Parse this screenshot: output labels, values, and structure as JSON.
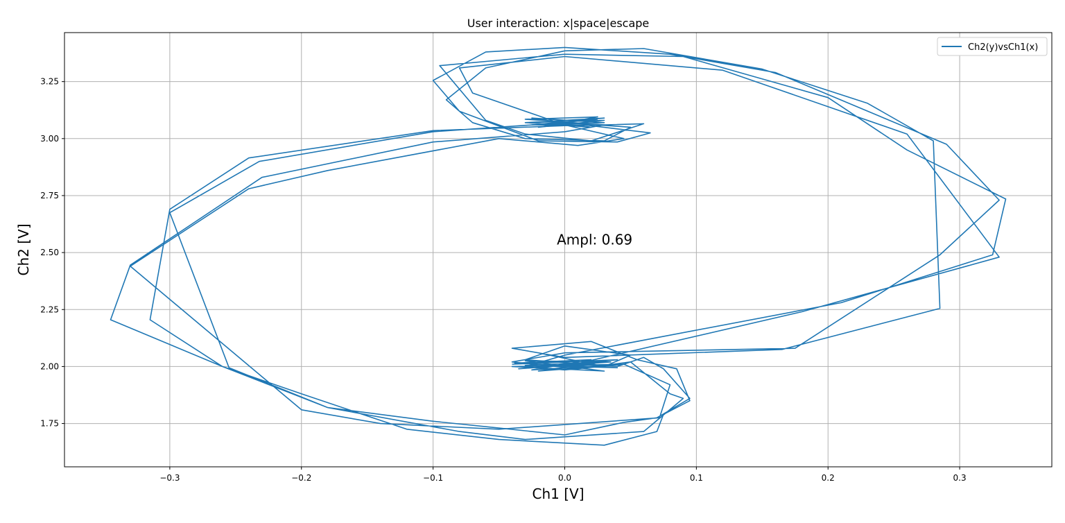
{
  "chart_data": {
    "type": "line",
    "title": "User interaction: x|space|escape",
    "xlabel": "Ch1 [V]",
    "ylabel": "Ch2 [V]",
    "xlim": [
      -0.38,
      0.37
    ],
    "ylim": [
      1.56,
      3.465
    ],
    "x_ticks": [
      -0.3,
      -0.2,
      -0.1,
      0.0,
      0.1,
      0.2,
      0.3
    ],
    "x_tick_labels": [
      "−0.3",
      "−0.2",
      "−0.1",
      "0.0",
      "0.1",
      "0.2",
      "0.3"
    ],
    "y_ticks": [
      1.75,
      2.0,
      2.25,
      2.5,
      2.75,
      3.0,
      3.25
    ],
    "y_tick_labels": [
      "1.75",
      "2.00",
      "2.25",
      "2.50",
      "2.75",
      "3.00",
      "3.25"
    ],
    "grid": true,
    "legend_position": "top-right",
    "annotation": {
      "text": "Ampl: 0.69",
      "x": -0.006,
      "y": 2.535
    },
    "series": [
      {
        "name": "Ch2(y)vsCh1(x)",
        "color": "#1f77b4",
        "points": [
          [
            -0.02,
            2.06
          ],
          [
            0.03,
            2.0
          ],
          [
            0.05,
            2.05
          ],
          [
            0.0,
            2.09
          ],
          [
            -0.03,
            2.03
          ],
          [
            0.04,
            2.0
          ],
          [
            0.06,
            2.04
          ],
          [
            0.075,
            1.99
          ],
          [
            0.095,
            1.86
          ],
          [
            0.07,
            1.775
          ],
          [
            0.045,
            1.755
          ],
          [
            0.0,
            1.7
          ],
          [
            -0.05,
            1.73
          ],
          [
            -0.1,
            1.76
          ],
          [
            -0.18,
            1.82
          ],
          [
            -0.255,
            1.995
          ],
          [
            -0.3,
            2.675
          ],
          [
            -0.232,
            2.9
          ],
          [
            -0.1,
            3.03
          ],
          [
            0.0,
            3.07
          ],
          [
            0.05,
            3.05
          ],
          [
            0.03,
            2.99
          ],
          [
            -0.03,
            3.0
          ],
          [
            -0.07,
            3.07
          ],
          [
            -0.09,
            3.17
          ],
          [
            -0.06,
            3.31
          ],
          [
            0.0,
            3.385
          ],
          [
            0.06,
            3.395
          ],
          [
            0.15,
            3.305
          ],
          [
            0.23,
            3.155
          ],
          [
            0.28,
            2.99
          ],
          [
            0.285,
            2.255
          ],
          [
            0.165,
            2.075
          ],
          [
            0.0,
            2.04
          ],
          [
            -0.04,
            2.08
          ],
          [
            0.02,
            2.11
          ],
          [
            0.055,
            2.03
          ],
          [
            0.085,
            1.99
          ],
          [
            0.095,
            1.85
          ],
          [
            0.075,
            1.79
          ],
          [
            0.07,
            1.715
          ],
          [
            0.03,
            1.655
          ],
          [
            -0.05,
            1.68
          ],
          [
            -0.12,
            1.725
          ],
          [
            -0.2,
            1.88
          ],
          [
            -0.26,
            2.0
          ],
          [
            -0.315,
            2.205
          ],
          [
            -0.3,
            2.69
          ],
          [
            -0.24,
            2.915
          ],
          [
            -0.1,
            3.035
          ],
          [
            0.015,
            3.06
          ],
          [
            0.065,
            3.025
          ],
          [
            0.04,
            2.985
          ],
          [
            -0.02,
            2.99
          ],
          [
            -0.08,
            3.12
          ],
          [
            -0.1,
            3.255
          ],
          [
            -0.06,
            3.38
          ],
          [
            0.0,
            3.4
          ],
          [
            0.08,
            3.37
          ],
          [
            0.16,
            3.29
          ],
          [
            0.22,
            3.145
          ],
          [
            0.29,
            2.975
          ],
          [
            0.33,
            2.73
          ],
          [
            0.285,
            2.49
          ],
          [
            0.175,
            2.08
          ],
          [
            0.0,
            2.06
          ],
          [
            -0.04,
            2.02
          ],
          [
            0.01,
            1.99
          ],
          [
            0.05,
            2.02
          ],
          [
            0.08,
            1.88
          ],
          [
            0.09,
            1.86
          ],
          [
            0.06,
            1.715
          ],
          [
            -0.03,
            1.68
          ],
          [
            -0.08,
            1.715
          ],
          [
            -0.18,
            1.82
          ],
          [
            -0.26,
            2.0
          ],
          [
            -0.345,
            2.205
          ],
          [
            -0.33,
            2.445
          ],
          [
            -0.23,
            2.83
          ],
          [
            -0.1,
            2.985
          ],
          [
            0.0,
            3.03
          ],
          [
            0.03,
            3.06
          ],
          [
            0.06,
            3.065
          ],
          [
            0.02,
            2.99
          ],
          [
            -0.03,
            3.02
          ],
          [
            -0.06,
            3.08
          ],
          [
            -0.095,
            3.32
          ],
          [
            0.0,
            3.37
          ],
          [
            0.09,
            3.36
          ],
          [
            0.2,
            3.18
          ],
          [
            0.26,
            2.95
          ],
          [
            0.335,
            2.735
          ],
          [
            0.325,
            2.49
          ],
          [
            0.21,
            2.28
          ],
          [
            0.0,
            2.05
          ],
          [
            -0.03,
            2.0
          ],
          [
            0.0,
            1.985
          ],
          [
            0.045,
            2.01
          ],
          [
            0.08,
            1.92
          ],
          [
            0.072,
            1.775
          ],
          [
            -0.05,
            1.725
          ],
          [
            -0.14,
            1.75
          ],
          [
            -0.2,
            1.81
          ],
          [
            -0.33,
            2.44
          ],
          [
            -0.24,
            2.78
          ],
          [
            -0.18,
            2.86
          ],
          [
            -0.05,
            3.0
          ],
          [
            0.01,
            2.97
          ],
          [
            0.045,
            3.0
          ],
          [
            0.0,
            3.06
          ],
          [
            -0.02,
            3.1
          ],
          [
            -0.07,
            3.2
          ],
          [
            -0.08,
            3.31
          ],
          [
            0.0,
            3.36
          ],
          [
            0.12,
            3.3
          ],
          [
            0.26,
            3.02
          ],
          [
            0.33,
            2.48
          ],
          [
            0.18,
            2.24
          ],
          [
            0.0,
            2.0
          ]
        ]
      },
      {
        "name": "",
        "color": "#1f77b4",
        "points": [
          [
            -0.04,
            2.01
          ],
          [
            0.04,
            2.03
          ],
          [
            -0.035,
            1.99
          ],
          [
            0.035,
            2.02
          ],
          [
            -0.03,
            2.025
          ],
          [
            0.03,
            1.98
          ],
          [
            -0.04,
            2.0
          ],
          [
            0.045,
            2.01
          ],
          [
            -0.025,
            1.985
          ],
          [
            0.02,
            2.03
          ],
          [
            -0.038,
            2.015
          ],
          [
            0.04,
            1.995
          ],
          [
            -0.03,
            2.005
          ],
          [
            0.03,
            2.02
          ],
          [
            -0.02,
            1.98
          ],
          [
            0.025,
            2.0
          ]
        ]
      },
      {
        "name": "",
        "color": "#1f77b4",
        "points": [
          [
            -0.03,
            3.07
          ],
          [
            0.03,
            3.09
          ],
          [
            -0.025,
            3.06
          ],
          [
            0.03,
            3.06
          ],
          [
            -0.03,
            3.085
          ],
          [
            0.025,
            3.095
          ],
          [
            -0.02,
            3.05
          ],
          [
            0.03,
            3.08
          ],
          [
            -0.03,
            3.07
          ],
          [
            0.02,
            3.05
          ],
          [
            -0.025,
            3.09
          ],
          [
            0.03,
            3.07
          ],
          [
            -0.02,
            3.06
          ],
          [
            0.025,
            3.085
          ]
        ]
      }
    ]
  }
}
